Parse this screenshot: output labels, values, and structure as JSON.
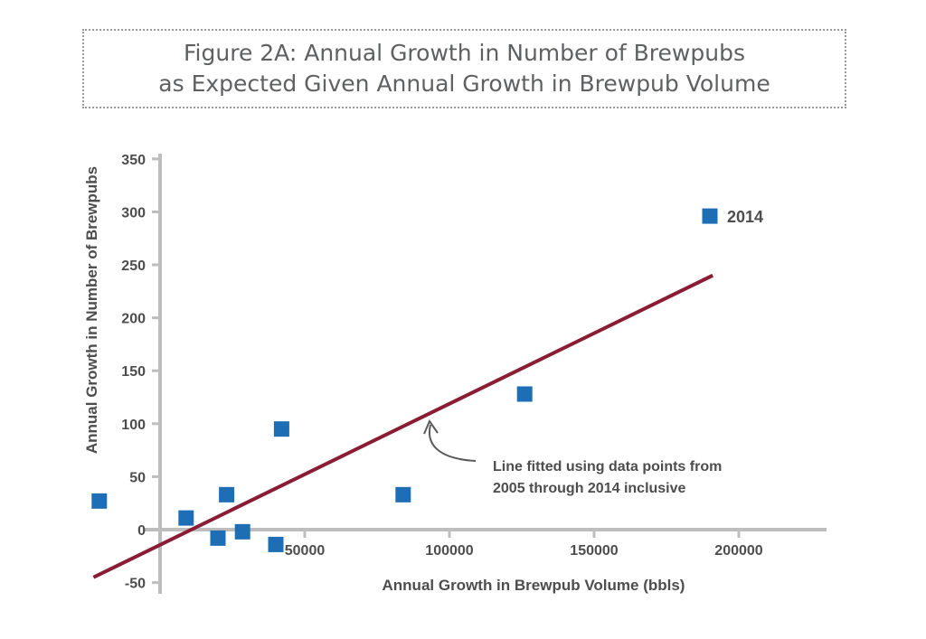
{
  "chart_data": {
    "type": "scatter",
    "title": [
      "Figure 2A: Annual Growth in Number of Brewpubs",
      "as Expected Given Annual Growth in Brewpub Volume"
    ],
    "xlabel": "Annual Growth in Brewpub Volume (bbls)",
    "ylabel": "Annual Growth in Number of Brewpubs",
    "xlim": [
      -23000,
      228000
    ],
    "ylim": [
      -60,
      360
    ],
    "xticks": [
      50000,
      100000,
      150000,
      200000
    ],
    "xtick_labels": [
      "50000",
      "100000",
      "150000",
      "200000"
    ],
    "yticks": [
      -50,
      0,
      50,
      100,
      150,
      200,
      250,
      300,
      350
    ],
    "ytick_labels": [
      "-50",
      "0",
      "50",
      "100",
      "150",
      "200",
      "250",
      "300",
      "350"
    ],
    "points": [
      {
        "x": -21000,
        "y": 27,
        "label": ""
      },
      {
        "x": 9000,
        "y": 11,
        "label": ""
      },
      {
        "x": 20000,
        "y": -8,
        "label": ""
      },
      {
        "x": 23000,
        "y": 33,
        "label": ""
      },
      {
        "x": 28500,
        "y": -2,
        "label": ""
      },
      {
        "x": 40000,
        "y": -14,
        "label": ""
      },
      {
        "x": 42000,
        "y": 95,
        "label": ""
      },
      {
        "x": 84000,
        "y": 33,
        "label": ""
      },
      {
        "x": 126000,
        "y": 128,
        "label": ""
      },
      {
        "x": 190000,
        "y": 296,
        "label": "2014"
      }
    ],
    "fit_line": {
      "x": [
        -23000,
        191000
      ],
      "y": [
        -45,
        240
      ]
    },
    "annotation": [
      "Line fitted using data points from",
      "2005 through 2014 inclusive"
    ],
    "grid": false,
    "colors": {
      "points": "#1e6eb5",
      "fit_line": "#8a1c34",
      "axis": "#bdbdbd",
      "text": "#4d4d4d"
    }
  }
}
